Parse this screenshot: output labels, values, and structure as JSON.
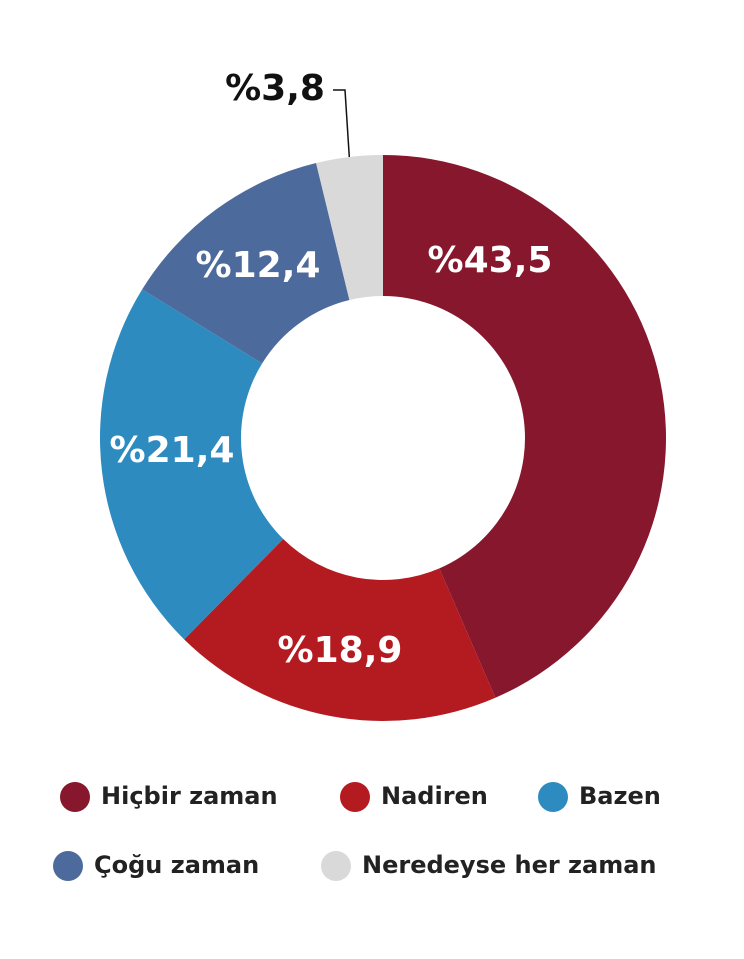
{
  "chart_data": {
    "type": "donut",
    "categories": [
      "Hiçbir zaman",
      "Nadiren",
      "Bazen",
      "Çoğu zaman",
      "Neredeyse her zaman"
    ],
    "values": [
      43.5,
      18.9,
      21.4,
      12.4,
      3.8
    ],
    "value_labels": [
      "%43,5",
      "%18,9",
      "%21,4",
      "%12,4",
      "%3,8"
    ],
    "colors": [
      "#86172c",
      "#b41b21",
      "#2e8bc0",
      "#4d6a9c",
      "#d9d9d9"
    ]
  }
}
